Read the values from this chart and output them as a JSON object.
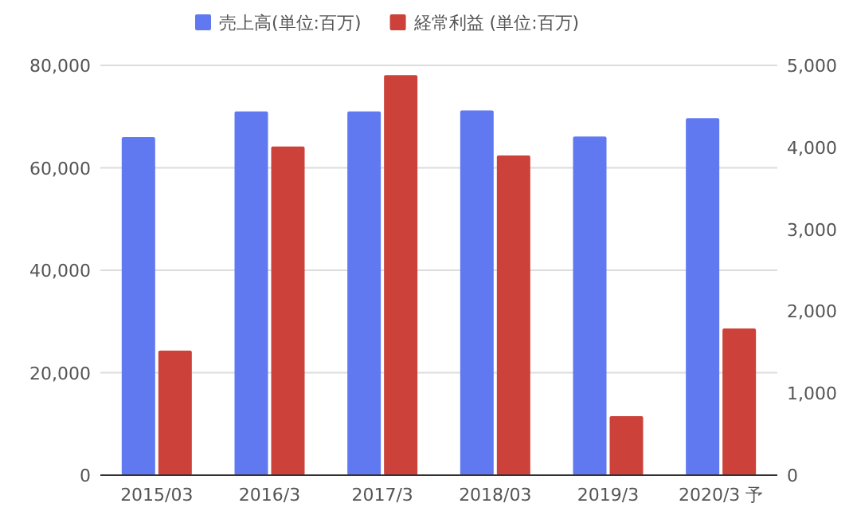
{
  "chart_data": {
    "type": "bar",
    "categories": [
      "2015/03",
      "2016/3",
      "2017/3",
      "2018/03",
      "2019/3",
      "2020/3 予"
    ],
    "series": [
      {
        "name": "売上高(単位:百万)",
        "color": "#6079f0",
        "values": [
          66000,
          71000,
          71000,
          71200,
          66100,
          69700
        ]
      },
      {
        "name": "経常利益 (単位:百万)",
        "color": "#cc4139",
        "axis": "y2",
        "values": [
          1520,
          4010,
          4880,
          3900,
          720,
          1790
        ]
      }
    ],
    "ylim": [
      0,
      80000
    ],
    "yticks": [
      {
        "value": 0,
        "label": "0"
      },
      {
        "value": 20000,
        "label": "20,000"
      },
      {
        "value": 40000,
        "label": "40,000"
      },
      {
        "value": 60000,
        "label": "60,000"
      },
      {
        "value": 80000,
        "label": "80,000"
      }
    ],
    "y2lim": [
      0,
      5000
    ],
    "y2ticks": [
      {
        "value": 0,
        "label": "0"
      },
      {
        "value": 1000,
        "label": "1,000"
      },
      {
        "value": 2000,
        "label": "2,000"
      },
      {
        "value": 3000,
        "label": "3,000"
      },
      {
        "value": 4000,
        "label": "4,000"
      },
      {
        "value": 5000,
        "label": "5,000"
      }
    ],
    "grid": "y",
    "legend": "top"
  }
}
